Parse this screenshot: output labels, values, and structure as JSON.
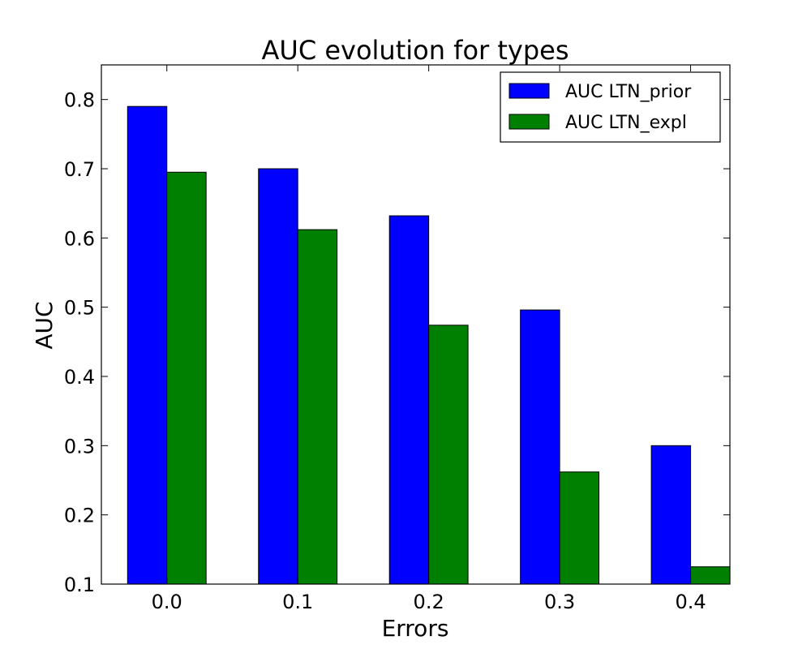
{
  "chart_data": {
    "type": "bar",
    "title": "AUC evolution for types",
    "xlabel": "Errors",
    "ylabel": "AUC",
    "categories": [
      "0.0",
      "0.1",
      "0.2",
      "0.3",
      "0.4"
    ],
    "ylim": [
      0.1,
      0.85
    ],
    "yticks": [
      "0.1",
      "0.2",
      "0.3",
      "0.4",
      "0.5",
      "0.6",
      "0.7",
      "0.8"
    ],
    "series": [
      {
        "name": "AUC LTN_prior",
        "color": "#0000ff",
        "values": [
          0.79,
          0.7,
          0.632,
          0.496,
          0.3
        ]
      },
      {
        "name": "AUC LTN_expl",
        "color": "#008000",
        "values": [
          0.695,
          0.612,
          0.474,
          0.262,
          0.125
        ]
      }
    ],
    "legend_position": "top-right",
    "grid": false
  }
}
